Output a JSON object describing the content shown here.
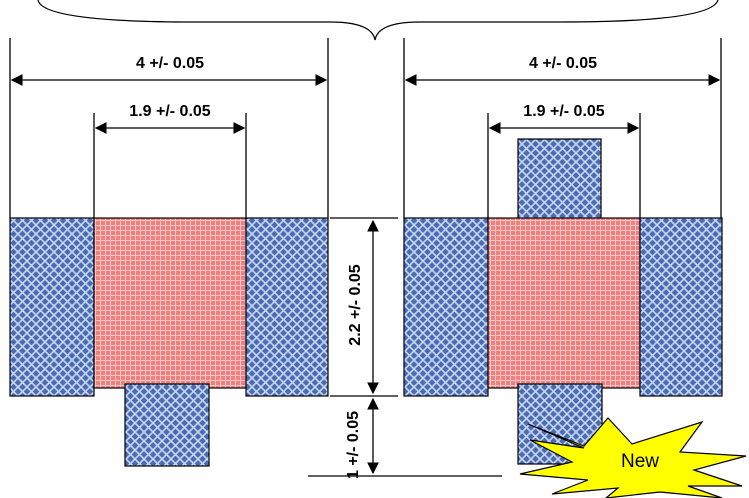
{
  "labels": {
    "left_total_width": "4 +/- 0.05",
    "left_inner_width": "1.9 +/- 0.05",
    "right_total_width": "4 +/- 0.05",
    "right_inner_width": "1.9 +/- 0.05",
    "pad_height": "2.2 +/- 0.05",
    "offset_height": "1 +/- 0.05",
    "new_badge": "New"
  },
  "colors": {
    "blue_pad": "#4a6cb3",
    "blue_hatch": "#c9d6f2",
    "red_body": "#ee8080",
    "red_grid": "#f9c4c4",
    "star_fill": "#ffff00",
    "line": "#000000"
  }
}
